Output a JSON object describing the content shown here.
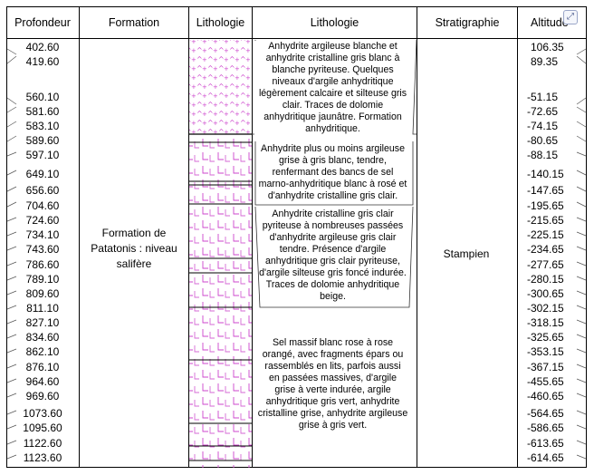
{
  "headers": {
    "depth": "Profondeur",
    "formation": "Formation",
    "lithology_graphic": "Lithologie",
    "lithology_text": "Lithologie",
    "stratigraphy": "Stratigraphie",
    "altitude": "Altitude"
  },
  "depths": [
    "402.60",
    "419.60",
    "560.10",
    "581.60",
    "583.10",
    "589.60",
    "597.10",
    "649.10",
    "656.60",
    "704.60",
    "724.60",
    "734.10",
    "743.60",
    "786.60",
    "789.10",
    "809.60",
    "811.10",
    "827.10",
    "834.60",
    "862.10",
    "876.10",
    "964.60",
    "969.60",
    "1073.60",
    "1095.60",
    "1122.60",
    "1123.60"
  ],
  "altitudes": [
    "106.35",
    "89.35",
    "-51.15",
    "-72.65",
    "-74.15",
    "-80.65",
    "-88.15",
    "-140.15",
    "-147.65",
    "-195.65",
    "-215.65",
    "-225.15",
    "-234.65",
    "-277.65",
    "-280.15",
    "-300.65",
    "-302.15",
    "-318.15",
    "-325.65",
    "-353.15",
    "-367.15",
    "-455.65",
    "-460.65",
    "-564.65",
    "-586.65",
    "-613.65",
    "-614.65"
  ],
  "formation": [
    "Formation de",
    "Patatonis : niveau",
    "salifère"
  ],
  "stratigraphy": "Stampien",
  "descriptions": [
    [
      "Anhydrite argileuse blanche et",
      "anhydrite cristalline gris blanc à",
      "blanche pyriteuse. Quelques",
      "niveaux d'argile anhydritique",
      "légèrement calcaire et silteuse gris",
      "clair. Traces de dolomie",
      "anhydritique jaunâtre. Formation",
      "anhydritique."
    ],
    [
      "Anhydrite plus ou moins argileuse",
      "grise à gris blanc, tendre,",
      "renfermant des bancs de sel",
      "marno-anhydritique blanc à rosé et",
      "d'anhydrite cristalline gris clair."
    ],
    [
      "Anhydrite cristalline gris clair",
      "pyriteuse à nombreuses passées",
      "d'anhydrite argileuse gris clair",
      "tendre. Présence d'argile",
      "anhydritique gris clair pyriteuse,",
      "d'argile silteuse gris foncé indurée.",
      "Traces de dolomie anhydritique",
      "beige."
    ],
    [
      "Sel massif blanc rose à rose",
      "orangé, avec fragments épars ou",
      "rassemblés en lits, parfois aussi",
      "en passées massives, d'argile",
      "grise à verte indurée, argile",
      "anhydritique gris vert, anhydrite",
      "cristalline grise, anhydrite argileuse",
      "grise à gris vert."
    ]
  ],
  "icon": "expand-icon",
  "colors": {
    "pattern": "#cc44cc",
    "line": "#000000"
  }
}
